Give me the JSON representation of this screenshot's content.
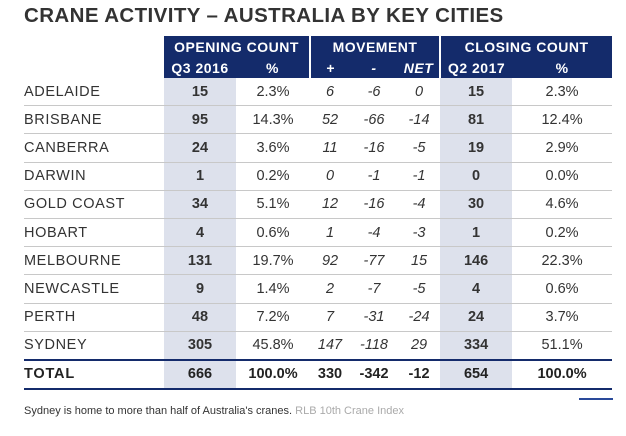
{
  "title": "CRANE ACTIVITY – AUSTRALIA BY KEY CITIES",
  "header": {
    "opening_count": "OPENING COUNT",
    "movement": "MOVEMENT",
    "closing_count": "CLOSING COUNT",
    "opening_period": "Q3 2016",
    "closing_period": "Q2 2017",
    "pct": "%",
    "plus": "+",
    "minus": "-",
    "net": "NET"
  },
  "chart_data": {
    "type": "table",
    "title": "CRANE ACTIVITY – AUSTRALIA BY KEY CITIES",
    "columns": [
      "",
      "OPENING COUNT Q3 2016",
      "%",
      "+",
      "-",
      "NET",
      "CLOSING COUNT Q2 2017",
      "%"
    ],
    "rows": [
      {
        "city": "ADELAIDE",
        "opening": "15",
        "opening_pct": "2.3%",
        "plus": "6",
        "minus": "-6",
        "net": "0",
        "closing": "15",
        "closing_pct": "2.3%"
      },
      {
        "city": "BRISBANE",
        "opening": "95",
        "opening_pct": "14.3%",
        "plus": "52",
        "minus": "-66",
        "net": "-14",
        "closing": "81",
        "closing_pct": "12.4%"
      },
      {
        "city": "CANBERRA",
        "opening": "24",
        "opening_pct": "3.6%",
        "plus": "11",
        "minus": "-16",
        "net": "-5",
        "closing": "19",
        "closing_pct": "2.9%"
      },
      {
        "city": "DARWIN",
        "opening": "1",
        "opening_pct": "0.2%",
        "plus": "0",
        "minus": "-1",
        "net": "-1",
        "closing": "0",
        "closing_pct": "0.0%"
      },
      {
        "city": "GOLD COAST",
        "opening": "34",
        "opening_pct": "5.1%",
        "plus": "12",
        "minus": "-16",
        "net": "-4",
        "closing": "30",
        "closing_pct": "4.6%"
      },
      {
        "city": "HOBART",
        "opening": "4",
        "opening_pct": "0.6%",
        "plus": "1",
        "minus": "-4",
        "net": "-3",
        "closing": "1",
        "closing_pct": "0.2%"
      },
      {
        "city": "MELBOURNE",
        "opening": "131",
        "opening_pct": "19.7%",
        "plus": "92",
        "minus": "-77",
        "net": "15",
        "closing": "146",
        "closing_pct": "22.3%"
      },
      {
        "city": "NEWCASTLE",
        "opening": "9",
        "opening_pct": "1.4%",
        "plus": "2",
        "minus": "-7",
        "net": "-5",
        "closing": "4",
        "closing_pct": "0.6%"
      },
      {
        "city": "PERTH",
        "opening": "48",
        "opening_pct": "7.2%",
        "plus": "7",
        "minus": "-31",
        "net": "-24",
        "closing": "24",
        "closing_pct": "3.7%"
      },
      {
        "city": "SYDNEY",
        "opening": "305",
        "opening_pct": "45.8%",
        "plus": "147",
        "minus": "-118",
        "net": "29",
        "closing": "334",
        "closing_pct": "51.1%"
      }
    ],
    "total": {
      "city": "TOTAL",
      "opening": "666",
      "opening_pct": "100.0%",
      "plus": "330",
      "minus": "-342",
      "net": "-12",
      "closing": "654",
      "closing_pct": "100.0%"
    }
  },
  "caption": {
    "text": "Sydney is home to more than half of Australia's cranes.",
    "source": "RLB 10th Crane Index"
  },
  "colors": {
    "header_bg": "#142b6b",
    "shaded_col": "#dde1ec",
    "accent_line": "#2a4a9a"
  }
}
